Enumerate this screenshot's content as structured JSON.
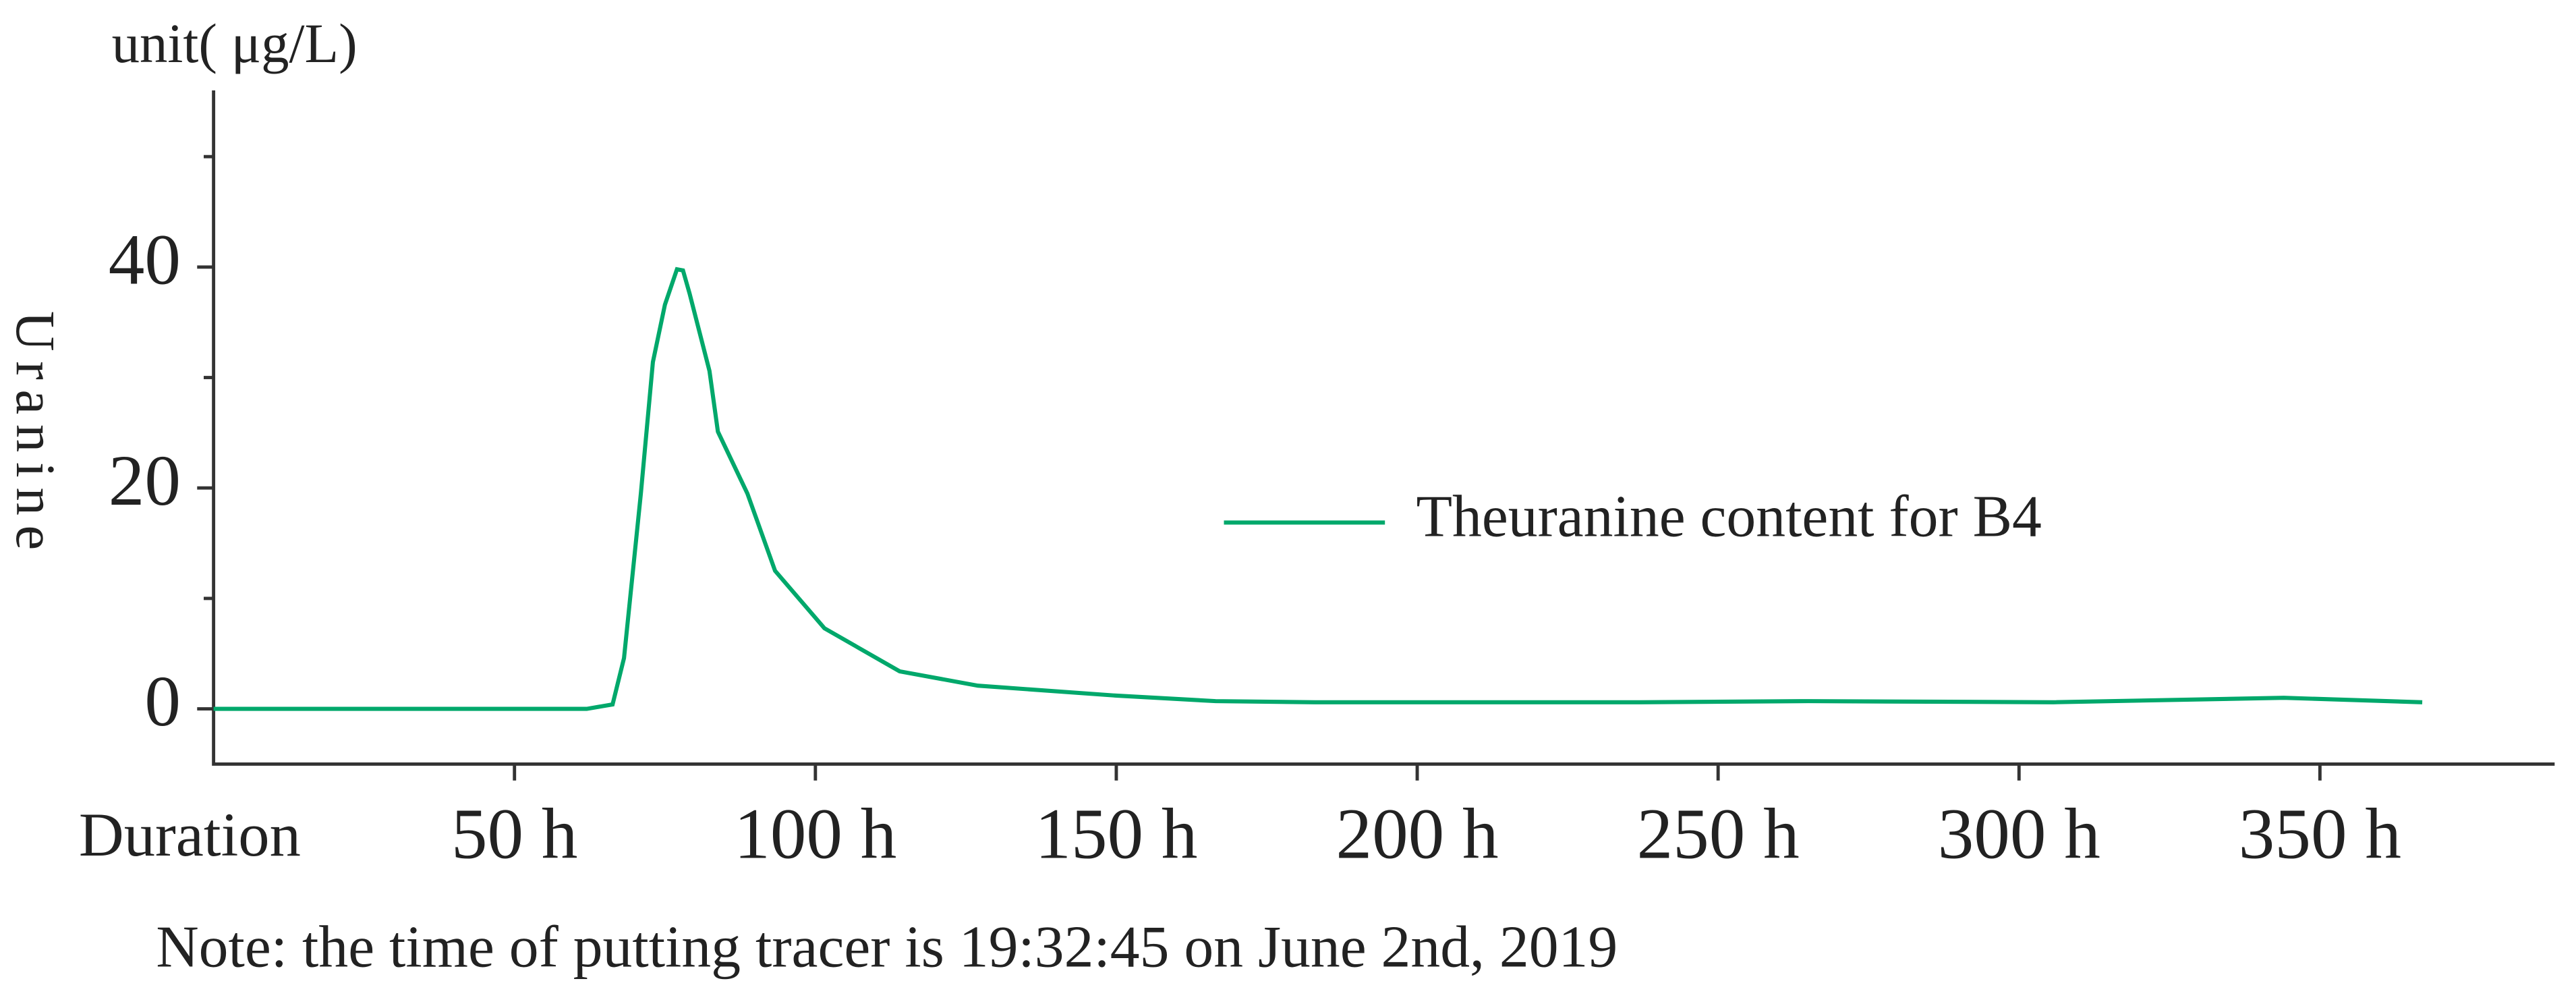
{
  "chart_data": {
    "type": "line",
    "unit_label": "unit( μg/L)",
    "y_label": "Uranine",
    "x_label": "Duration",
    "note": "Note: the  time of putting tracer  is 19:32:45 on June 2nd, 2019",
    "x": [
      0,
      62,
      66.3,
      68.2,
      71,
      73,
      75,
      77,
      78,
      79.1,
      82.4,
      83.8,
      88.7,
      93.3,
      101.5,
      114,
      127,
      150,
      166.5,
      183,
      237,
      265,
      305.7,
      344,
      367
    ],
    "series": [
      {
        "name": "Theuranine content for B4",
        "color": "#00a86b",
        "values": [
          0,
          0,
          0.4,
          4.6,
          19.5,
          31.4,
          36.6,
          39.8,
          39.7,
          37.6,
          30.6,
          25.1,
          19.5,
          12.5,
          7.3,
          3.4,
          2.1,
          1.2,
          0.7,
          0.6,
          0.6,
          0.7,
          0.6,
          1,
          0.6
        ]
      }
    ],
    "xlim": [
      0,
      389
    ],
    "ylim": [
      -5,
      56
    ],
    "xticks": [
      {
        "value": 50,
        "label": "50 h"
      },
      {
        "value": 100,
        "label": "100 h"
      },
      {
        "value": 150,
        "label": "150 h"
      },
      {
        "value": 200,
        "label": "200 h"
      },
      {
        "value": 250,
        "label": "250 h"
      },
      {
        "value": 300,
        "label": "300 h"
      },
      {
        "value": 350,
        "label": "350 h"
      }
    ],
    "yticks": [
      0,
      20,
      40
    ],
    "yminorticks": [
      10,
      30,
      50
    ],
    "legend": "right"
  }
}
